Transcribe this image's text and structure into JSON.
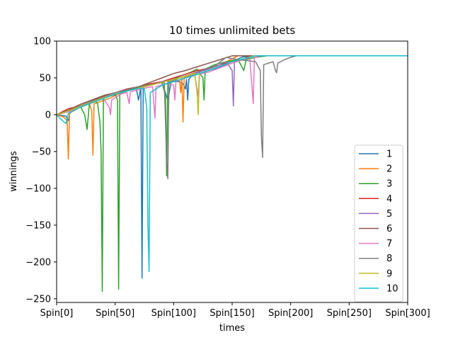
{
  "chart_data": {
    "type": "line",
    "title": "10 times unlimited bets",
    "xlabel": "times",
    "ylabel": "winnings",
    "xlim": [
      0,
      300
    ],
    "ylim": [
      -255,
      100
    ],
    "x_ticks": [
      0,
      50,
      100,
      150,
      200,
      250,
      300
    ],
    "x_tick_labels": [
      "Spin[0]",
      "Spin[50]",
      "Spin[100]",
      "Spin[150]",
      "Spin[200]",
      "Spin[250]",
      "Spin[300]"
    ],
    "y_ticks": [
      100,
      50,
      0,
      -50,
      -100,
      -150,
      -200,
      -250
    ],
    "y_tick_labels": [
      "100",
      "50",
      "0",
      "−50",
      "−100",
      "−150",
      "−200",
      "−250"
    ],
    "grid": false,
    "legend_position": "lower-right",
    "series": [
      {
        "name": "1",
        "color": "#1f77b4",
        "points": [
          [
            0,
            0
          ],
          [
            8,
            -2
          ],
          [
            10,
            -8
          ],
          [
            12,
            6
          ],
          [
            25,
            15
          ],
          [
            35,
            22
          ],
          [
            50,
            27
          ],
          [
            60,
            32
          ],
          [
            68,
            36
          ],
          [
            70,
            20
          ],
          [
            72,
            37
          ],
          [
            73,
            -222
          ],
          [
            74,
            38
          ],
          [
            90,
            44
          ],
          [
            95,
            20
          ],
          [
            98,
            45
          ],
          [
            105,
            45
          ],
          [
            108,
            42
          ],
          [
            110,
            35
          ],
          [
            111,
            48
          ],
          [
            112,
            20
          ],
          [
            113,
            48
          ],
          [
            115,
            52
          ],
          [
            130,
            60
          ],
          [
            140,
            65
          ],
          [
            150,
            72
          ],
          [
            158,
            78
          ],
          [
            165,
            80
          ],
          [
            300,
            80
          ]
        ]
      },
      {
        "name": "2",
        "color": "#ff7f0e",
        "points": [
          [
            0,
            0
          ],
          [
            6,
            -3
          ],
          [
            9,
            -8
          ],
          [
            10,
            -60
          ],
          [
            11,
            2
          ],
          [
            20,
            10
          ],
          [
            28,
            15
          ],
          [
            30,
            5
          ],
          [
            31,
            -55
          ],
          [
            32,
            15
          ],
          [
            45,
            22
          ],
          [
            55,
            30
          ],
          [
            80,
            42
          ],
          [
            100,
            48
          ],
          [
            105,
            46
          ],
          [
            106,
            30
          ],
          [
            107,
            50
          ],
          [
            108,
            -10
          ],
          [
            109,
            50
          ],
          [
            125,
            60
          ],
          [
            140,
            68
          ],
          [
            150,
            76
          ],
          [
            155,
            80
          ],
          [
            300,
            80
          ]
        ]
      },
      {
        "name": "3",
        "color": "#2ca02c",
        "points": [
          [
            0,
            0
          ],
          [
            5,
            2
          ],
          [
            10,
            5
          ],
          [
            20,
            12
          ],
          [
            24,
            0
          ],
          [
            26,
            -20
          ],
          [
            28,
            15
          ],
          [
            32,
            20
          ],
          [
            35,
            15
          ],
          [
            37,
            -10
          ],
          [
            38,
            -50
          ],
          [
            39,
            -240
          ],
          [
            40,
            22
          ],
          [
            45,
            25
          ],
          [
            50,
            28
          ],
          [
            52,
            20
          ],
          [
            53,
            -237
          ],
          [
            54,
            30
          ],
          [
            65,
            35
          ],
          [
            78,
            40
          ],
          [
            90,
            45
          ],
          [
            93,
            25
          ],
          [
            94,
            -83
          ],
          [
            95,
            45
          ],
          [
            105,
            52
          ],
          [
            110,
            55
          ],
          [
            115,
            58
          ],
          [
            120,
            62
          ],
          [
            125,
            50
          ],
          [
            126,
            20
          ],
          [
            127,
            62
          ],
          [
            135,
            68
          ],
          [
            145,
            72
          ],
          [
            155,
            75
          ],
          [
            160,
            60
          ],
          [
            162,
            75
          ],
          [
            170,
            78
          ],
          [
            180,
            80
          ],
          [
            300,
            80
          ]
        ]
      },
      {
        "name": "4",
        "color": "#d62728",
        "points": [
          [
            0,
            0
          ],
          [
            10,
            8
          ],
          [
            20,
            12
          ],
          [
            30,
            18
          ],
          [
            40,
            25
          ],
          [
            50,
            30
          ],
          [
            60,
            35
          ],
          [
            70,
            38
          ],
          [
            80,
            42
          ],
          [
            90,
            45
          ],
          [
            100,
            50
          ],
          [
            110,
            55
          ],
          [
            120,
            60
          ],
          [
            130,
            63
          ],
          [
            140,
            68
          ],
          [
            150,
            72
          ],
          [
            160,
            76
          ],
          [
            165,
            80
          ],
          [
            300,
            80
          ]
        ]
      },
      {
        "name": "5",
        "color": "#9467bd",
        "points": [
          [
            0,
            0
          ],
          [
            10,
            5
          ],
          [
            20,
            10
          ],
          [
            30,
            16
          ],
          [
            40,
            22
          ],
          [
            50,
            28
          ],
          [
            60,
            32
          ],
          [
            70,
            36
          ],
          [
            80,
            40
          ],
          [
            90,
            45
          ],
          [
            100,
            48
          ],
          [
            110,
            52
          ],
          [
            120,
            57
          ],
          [
            130,
            62
          ],
          [
            140,
            68
          ],
          [
            145,
            72
          ],
          [
            150,
            60
          ],
          [
            151,
            12
          ],
          [
            152,
            72
          ],
          [
            160,
            75
          ],
          [
            168,
            80
          ],
          [
            300,
            80
          ]
        ]
      },
      {
        "name": "6",
        "color": "#8c564b",
        "points": [
          [
            0,
            0
          ],
          [
            10,
            6
          ],
          [
            20,
            14
          ],
          [
            30,
            20
          ],
          [
            40,
            26
          ],
          [
            50,
            30
          ],
          [
            60,
            34
          ],
          [
            70,
            38
          ],
          [
            80,
            44
          ],
          [
            90,
            50
          ],
          [
            100,
            56
          ],
          [
            110,
            60
          ],
          [
            120,
            65
          ],
          [
            130,
            70
          ],
          [
            140,
            75
          ],
          [
            150,
            80
          ],
          [
            300,
            80
          ]
        ]
      },
      {
        "name": "7",
        "color": "#e377c2",
        "points": [
          [
            0,
            0
          ],
          [
            10,
            4
          ],
          [
            20,
            10
          ],
          [
            30,
            16
          ],
          [
            40,
            22
          ],
          [
            45,
            10
          ],
          [
            46,
            0
          ],
          [
            47,
            20
          ],
          [
            55,
            28
          ],
          [
            60,
            30
          ],
          [
            62,
            15
          ],
          [
            63,
            31
          ],
          [
            75,
            36
          ],
          [
            82,
            38
          ],
          [
            84,
            -5
          ],
          [
            85,
            38
          ],
          [
            95,
            43
          ],
          [
            100,
            40
          ],
          [
            101,
            20
          ],
          [
            102,
            45
          ],
          [
            110,
            50
          ],
          [
            118,
            54
          ],
          [
            120,
            35
          ],
          [
            121,
            25
          ],
          [
            122,
            55
          ],
          [
            130,
            58
          ],
          [
            140,
            64
          ],
          [
            150,
            70
          ],
          [
            160,
            75
          ],
          [
            165,
            78
          ],
          [
            168,
            15
          ],
          [
            169,
            78
          ],
          [
            175,
            80
          ],
          [
            300,
            80
          ]
        ]
      },
      {
        "name": "8",
        "color": "#7f7f7f",
        "points": [
          [
            0,
            0
          ],
          [
            10,
            5
          ],
          [
            20,
            12
          ],
          [
            30,
            18
          ],
          [
            40,
            24
          ],
          [
            50,
            30
          ],
          [
            60,
            34
          ],
          [
            70,
            38
          ],
          [
            85,
            42
          ],
          [
            92,
            44
          ],
          [
            94,
            -60
          ],
          [
            95,
            -87
          ],
          [
            96,
            44
          ],
          [
            105,
            50
          ],
          [
            120,
            58
          ],
          [
            135,
            66
          ],
          [
            140,
            72
          ],
          [
            145,
            78
          ],
          [
            150,
            76
          ],
          [
            160,
            74
          ],
          [
            170,
            72
          ],
          [
            174,
            60
          ],
          [
            175,
            -30
          ],
          [
            176,
            -58
          ],
          [
            177,
            68
          ],
          [
            185,
            72
          ],
          [
            187,
            60
          ],
          [
            188,
            57
          ],
          [
            189,
            70
          ],
          [
            195,
            75
          ],
          [
            200,
            78
          ],
          [
            205,
            80
          ],
          [
            300,
            80
          ]
        ]
      },
      {
        "name": "9",
        "color": "#bcbd22",
        "points": [
          [
            0,
            0
          ],
          [
            10,
            5
          ],
          [
            20,
            11
          ],
          [
            30,
            17
          ],
          [
            40,
            23
          ],
          [
            50,
            28
          ],
          [
            60,
            32
          ],
          [
            70,
            36
          ],
          [
            80,
            40
          ],
          [
            90,
            44
          ],
          [
            100,
            48
          ],
          [
            110,
            52
          ],
          [
            118,
            56
          ],
          [
            120,
            30
          ],
          [
            121,
            0
          ],
          [
            122,
            56
          ],
          [
            130,
            60
          ],
          [
            140,
            66
          ],
          [
            150,
            72
          ],
          [
            160,
            76
          ],
          [
            168,
            80
          ],
          [
            300,
            80
          ]
        ]
      },
      {
        "name": "10",
        "color": "#17becf",
        "points": [
          [
            0,
            0
          ],
          [
            3,
            -5
          ],
          [
            5,
            -8
          ],
          [
            8,
            -12
          ],
          [
            10,
            2
          ],
          [
            20,
            10
          ],
          [
            30,
            16
          ],
          [
            40,
            22
          ],
          [
            50,
            28
          ],
          [
            60,
            32
          ],
          [
            70,
            36
          ],
          [
            75,
            35
          ],
          [
            77,
            10
          ],
          [
            78,
            -150
          ],
          [
            79,
            -213
          ],
          [
            80,
            30
          ],
          [
            90,
            40
          ],
          [
            100,
            45
          ],
          [
            110,
            50
          ],
          [
            120,
            55
          ],
          [
            130,
            60
          ],
          [
            140,
            66
          ],
          [
            150,
            72
          ],
          [
            160,
            76
          ],
          [
            170,
            80
          ],
          [
            300,
            80
          ]
        ]
      }
    ]
  }
}
